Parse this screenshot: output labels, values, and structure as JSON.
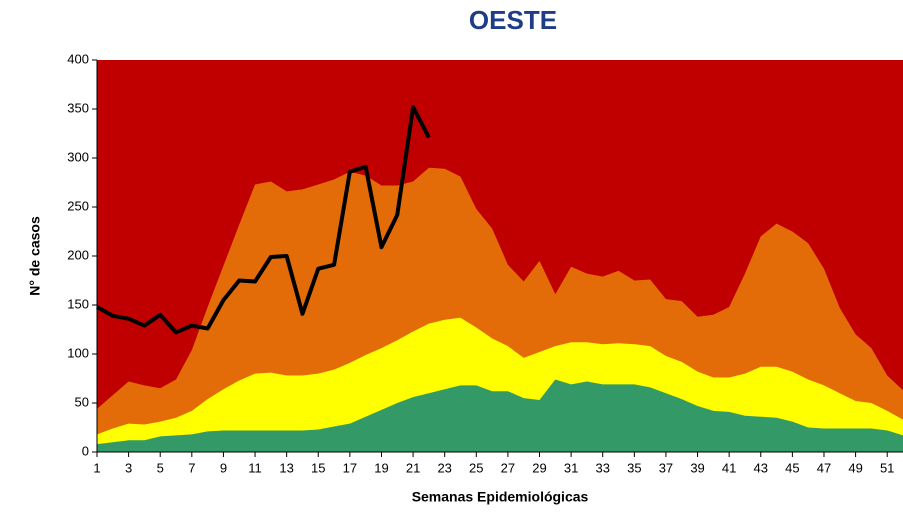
{
  "chart_data": {
    "type": "area",
    "title": "OESTE",
    "x_label": "Semanas Epidemiológicas",
    "y_label": "N° de casos",
    "plot_background": "#c00000",
    "x": [
      1,
      2,
      3,
      4,
      5,
      6,
      7,
      8,
      9,
      10,
      11,
      12,
      13,
      14,
      15,
      16,
      17,
      18,
      19,
      20,
      21,
      22,
      23,
      24,
      25,
      26,
      27,
      28,
      29,
      30,
      31,
      32,
      33,
      34,
      35,
      36,
      37,
      38,
      39,
      40,
      41,
      42,
      43,
      44,
      45,
      46,
      47,
      48,
      49,
      50,
      51,
      52
    ],
    "xlim": [
      1,
      52
    ],
    "xticks": [
      1,
      3,
      5,
      7,
      9,
      11,
      13,
      15,
      17,
      19,
      21,
      23,
      25,
      27,
      29,
      31,
      33,
      35,
      37,
      39,
      41,
      43,
      45,
      47,
      49,
      51
    ],
    "ylim": [
      0,
      400
    ],
    "yticks": [
      0,
      50,
      100,
      150,
      200,
      250,
      300,
      350,
      400
    ],
    "series": [
      {
        "color": "#e36c09",
        "values": [
          44,
          58,
          72,
          68,
          65,
          74,
          104,
          148,
          190,
          232,
          273,
          276,
          266,
          268,
          273,
          278,
          286,
          282,
          272,
          272,
          276,
          290,
          289,
          281,
          248,
          228,
          191,
          174,
          195,
          161,
          189,
          182,
          179,
          185,
          175,
          176,
          156,
          154,
          138,
          140,
          148,
          182,
          220,
          233,
          225,
          213,
          187,
          147,
          120,
          106,
          78,
          63
        ]
      },
      {
        "color": "#ffff00",
        "values": [
          18,
          24,
          29,
          28,
          31,
          35,
          42,
          54,
          64,
          73,
          80,
          81,
          78,
          78,
          80,
          84,
          91,
          99,
          106,
          114,
          123,
          131,
          135,
          137,
          127,
          116,
          108,
          96,
          102,
          108,
          112,
          112,
          110,
          111,
          110,
          108,
          98,
          92,
          82,
          76,
          76,
          80,
          87,
          87,
          82,
          74,
          68,
          60,
          52,
          50,
          42,
          33
        ]
      },
      {
        "color": "#339966",
        "values": [
          8,
          10,
          12,
          12,
          16,
          17,
          18,
          21,
          22,
          22,
          22,
          22,
          22,
          22,
          23,
          26,
          29,
          36,
          43,
          50,
          56,
          60,
          64,
          68,
          68,
          62,
          62,
          55,
          53,
          74,
          69,
          72,
          69,
          69,
          69,
          66,
          60,
          54,
          47,
          42,
          41,
          37,
          36,
          35,
          31,
          25,
          24,
          24,
          24,
          24,
          22,
          17
        ]
      },
      {
        "type": "line",
        "color": "#000000",
        "values": [
          148,
          139,
          136,
          129,
          140,
          122,
          129,
          126,
          155,
          175,
          174,
          199,
          200,
          141,
          187,
          191,
          286,
          291,
          209,
          242,
          352,
          321,
          null,
          null,
          null,
          null,
          null,
          null,
          null,
          null,
          null,
          null,
          null,
          null,
          null,
          null,
          null,
          null,
          null,
          null,
          null,
          null,
          null,
          null,
          null,
          null,
          null,
          null,
          null,
          null,
          null,
          null
        ]
      }
    ]
  }
}
